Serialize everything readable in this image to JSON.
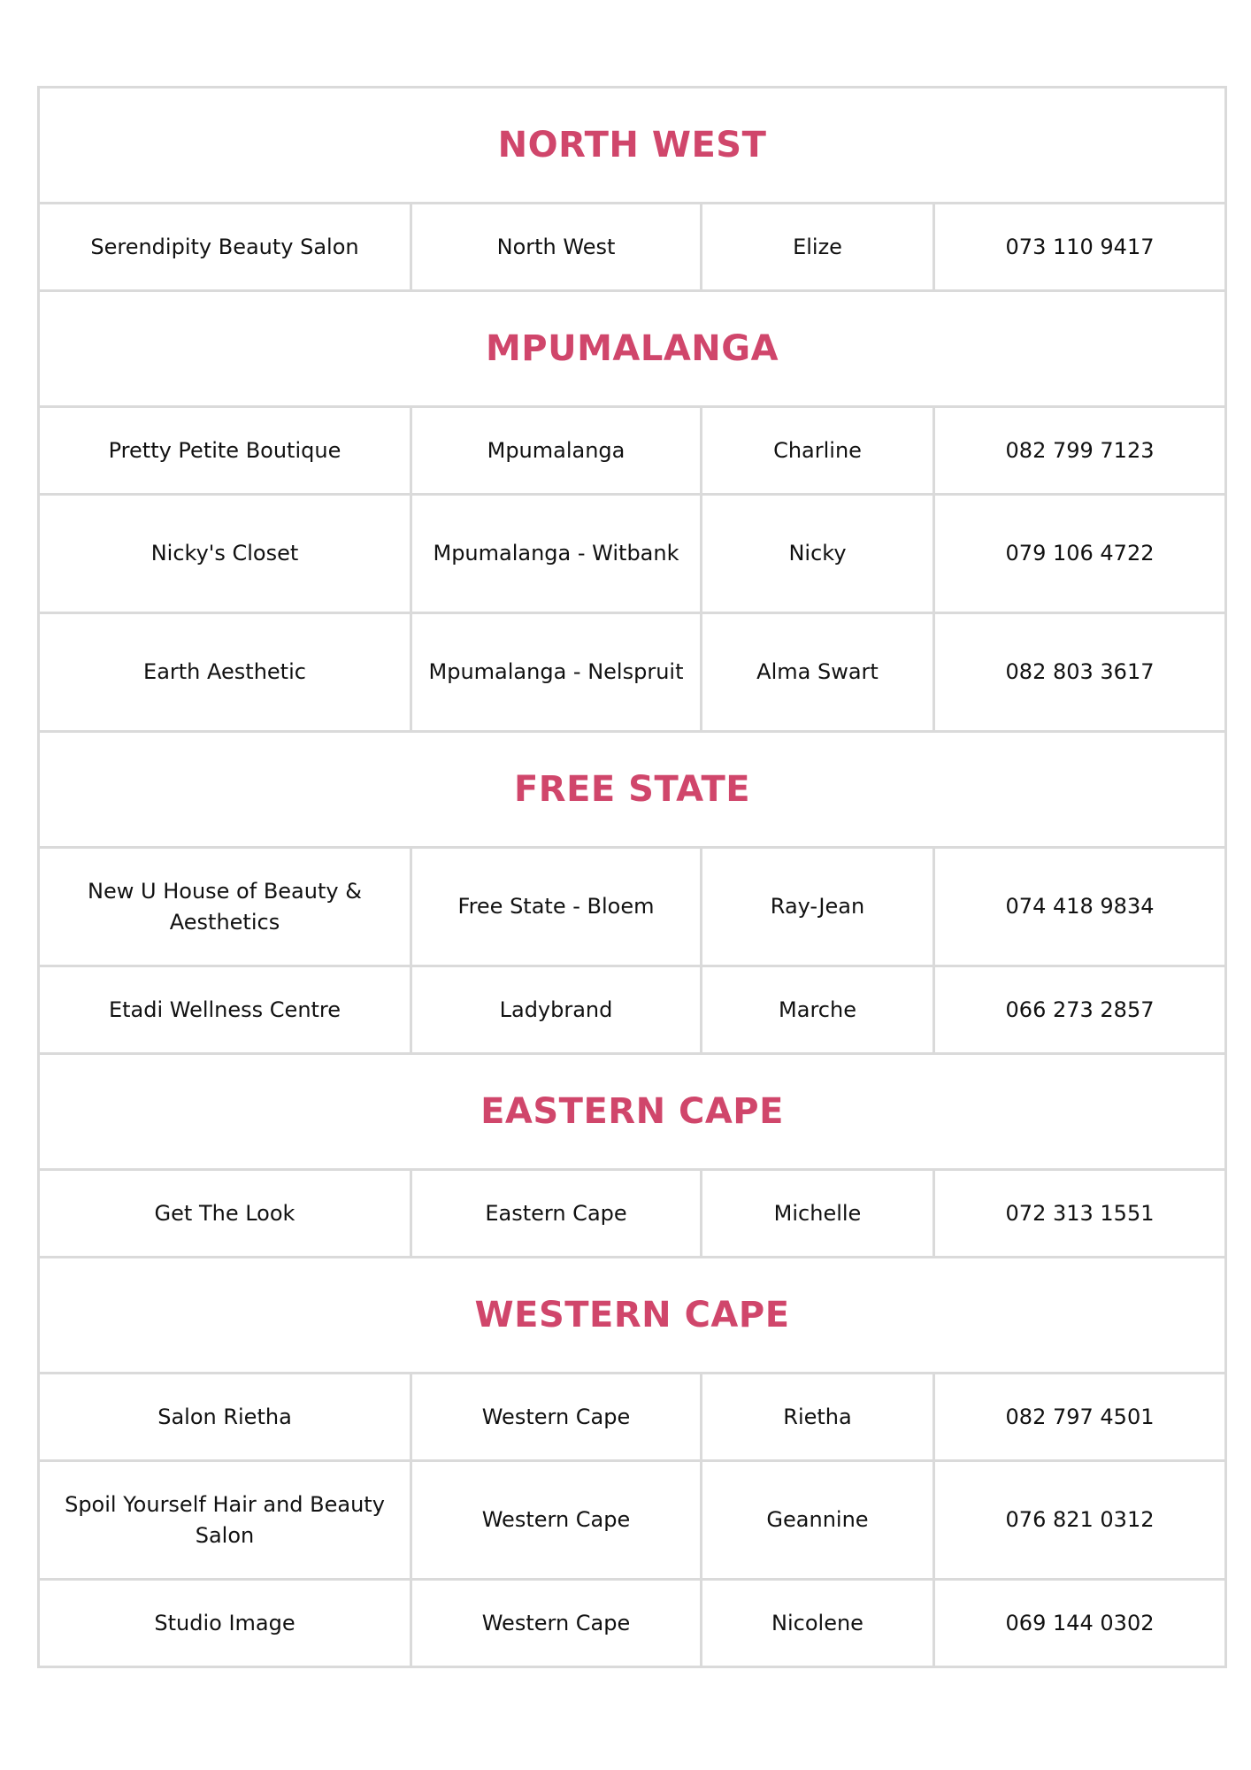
{
  "accent_color": "#d0466b",
  "sections": [
    {
      "region": "NORTH WEST",
      "rows": [
        [
          "Serendipity Beauty Salon",
          "North West",
          "Elize",
          "073 110 9417"
        ]
      ]
    },
    {
      "region": "MPUMALANGA",
      "rows": [
        [
          "Pretty Petite Boutique",
          "Mpumalanga",
          "Charline",
          "082 799 7123"
        ],
        [
          "Nicky's Closet",
          "Mpumalanga - Witbank",
          "Nicky",
          "079 106 4722"
        ],
        [
          "Earth Aesthetic",
          "Mpumalanga - Nelspruit",
          "Alma Swart",
          "082 803 3617"
        ]
      ]
    },
    {
      "region": "FREE STATE",
      "rows": [
        [
          "New U House of Beauty & Aesthetics",
          "Free State - Bloem",
          "Ray-Jean",
          "074 418 9834"
        ],
        [
          "Etadi Wellness Centre",
          "Ladybrand",
          "Marche",
          "066 273 2857"
        ]
      ]
    },
    {
      "region": "EASTERN CAPE",
      "rows": [
        [
          "Get The Look",
          "Eastern Cape",
          "Michelle",
          "072 313 1551"
        ]
      ]
    },
    {
      "region": "WESTERN CAPE",
      "rows": [
        [
          "Salon Rietha",
          "Western Cape",
          "Rietha",
          "082 797 4501"
        ],
        [
          "Spoil Yourself Hair and Beauty Salon",
          "Western Cape",
          "Geannine",
          "076 821 0312"
        ],
        [
          "Studio Image",
          "Western Cape",
          "Nicolene",
          "069 144 0302"
        ]
      ]
    }
  ]
}
